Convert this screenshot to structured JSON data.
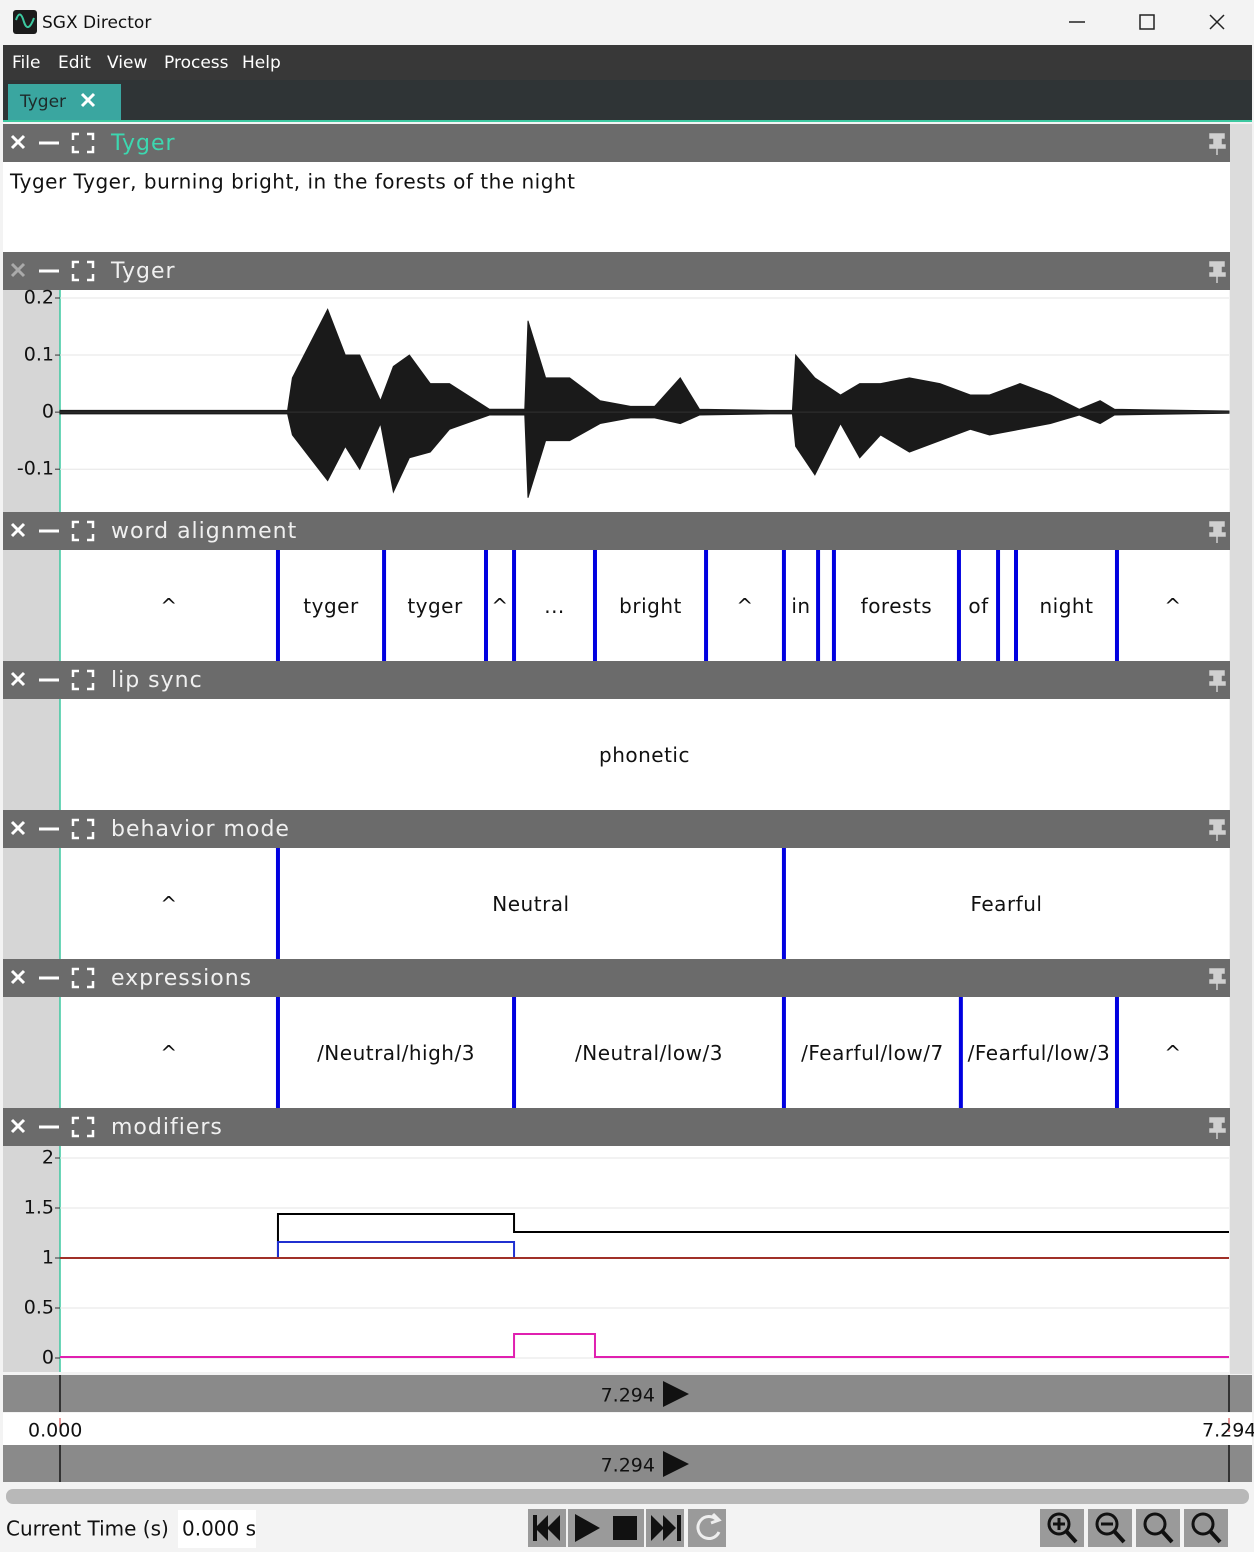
{
  "window": {
    "title": "SGX Director"
  },
  "menu": [
    "File",
    "Edit",
    "View",
    "Process",
    "Help"
  ],
  "tab": "Tyger",
  "transcript": {
    "title": "Tyger",
    "text": "Tyger Tyger, burning bright, in the forests of the night"
  },
  "chart_data": [
    {
      "type": "waveform",
      "title": "Tyger",
      "color": "#1a1a1a",
      "grid": true,
      "x": [
        0,
        1.42,
        1.45,
        1.56,
        1.67,
        1.78,
        1.87,
        2.0,
        2.08,
        2.18,
        2.31,
        2.43,
        2.68,
        2.9,
        2.92,
        3.03,
        3.18,
        3.37,
        3.56,
        3.71,
        3.87,
        3.99,
        4.43,
        4.57,
        4.59,
        4.71,
        4.87,
        4.99,
        5.12,
        5.3,
        5.49,
        5.68,
        5.8,
        5.99,
        6.18,
        6.36,
        6.49,
        6.58,
        7.294
      ],
      "upper": [
        0.003,
        0.003,
        0.06,
        0.12,
        0.18,
        0.1,
        0.1,
        0.02,
        0.08,
        0.1,
        0.05,
        0.05,
        0.005,
        0.005,
        0.16,
        0.06,
        0.06,
        0.02,
        0.01,
        0.01,
        0.06,
        0.005,
        0.003,
        0.003,
        0.1,
        0.06,
        0.03,
        0.05,
        0.05,
        0.06,
        0.05,
        0.03,
        0.03,
        0.05,
        0.03,
        0.005,
        0.02,
        0.005,
        0.002
      ],
      "lower": [
        -0.003,
        -0.003,
        -0.04,
        -0.08,
        -0.12,
        -0.06,
        -0.1,
        -0.02,
        -0.14,
        -0.08,
        -0.07,
        -0.03,
        -0.005,
        -0.005,
        -0.15,
        -0.05,
        -0.05,
        -0.02,
        -0.01,
        -0.01,
        -0.02,
        -0.005,
        -0.003,
        -0.003,
        -0.06,
        -0.11,
        -0.02,
        -0.08,
        -0.04,
        -0.07,
        -0.05,
        -0.03,
        -0.04,
        -0.03,
        -0.02,
        -0.005,
        -0.02,
        -0.005,
        -0.002
      ],
      "xlim": [
        0,
        7.294
      ],
      "ylim": [
        -0.175,
        0.214
      ],
      "yticks": [
        0.2,
        0.1,
        0,
        -0.1
      ]
    },
    {
      "type": "segments",
      "title": "word alignment",
      "color": "#0000e0",
      "xlim": [
        0,
        7.294
      ],
      "boundaries": [
        1.36,
        2.022,
        2.658,
        2.833,
        3.338,
        4.031,
        4.517,
        4.73,
        4.829,
        5.609,
        5.853,
        5.965,
        6.595
      ],
      "labels": [
        "^",
        "tyger",
        "tyger",
        "^",
        "...",
        "bright",
        "^",
        "in",
        null,
        "forests",
        "of",
        null,
        "night",
        "^"
      ]
    },
    {
      "type": "segments",
      "title": "lip sync",
      "color": "#0000e0",
      "xlim": [
        0,
        7.294
      ],
      "boundaries": [],
      "labels": [
        "phonetic"
      ]
    },
    {
      "type": "segments",
      "title": "behavior mode",
      "color": "#0000e0",
      "xlim": [
        0,
        7.294
      ],
      "boundaries": [
        1.36,
        4.517
      ],
      "labels": [
        "^",
        "Neutral",
        "Fearful"
      ]
    },
    {
      "type": "segments",
      "title": "expressions",
      "color": "#0000e0",
      "xlim": [
        0,
        7.294
      ],
      "boundaries": [
        1.36,
        2.833,
        4.517,
        5.621,
        6.595
      ],
      "labels": [
        "^",
        "/Neutral/high/3",
        "/Neutral/low/3",
        "/Fearful/low/7",
        "/Fearful/low/3",
        "^"
      ]
    },
    {
      "type": "step",
      "title": "modifiers",
      "grid": true,
      "xlim": [
        0,
        7.294
      ],
      "ylim": [
        -0.14,
        2.12
      ],
      "yticks": [
        0,
        0.5,
        1,
        1.5,
        2
      ],
      "x": [
        0,
        1.36,
        2.833,
        3.338
      ],
      "series": [
        {
          "color": "#000000",
          "values": [
            1,
            1.44,
            1.26,
            1.26
          ]
        },
        {
          "color": "#2030d0",
          "values": [
            1,
            1.16,
            1,
            1
          ]
        },
        {
          "color": "#a03028",
          "values": [
            1,
            1,
            1,
            1
          ]
        },
        {
          "color": "#e020b0",
          "values": [
            0.01,
            0.01,
            0.24,
            0.01
          ]
        }
      ]
    }
  ],
  "timeline": {
    "xlim": [
      0,
      7.294
    ],
    "ticks": [
      {
        "value": 0,
        "label": "0.000"
      },
      {
        "value": 7.294,
        "label": "7.294"
      }
    ],
    "bars": [
      "7.294",
      "7.294"
    ]
  },
  "status": {
    "label": "Current Time (s)",
    "value": "0.000 s"
  }
}
